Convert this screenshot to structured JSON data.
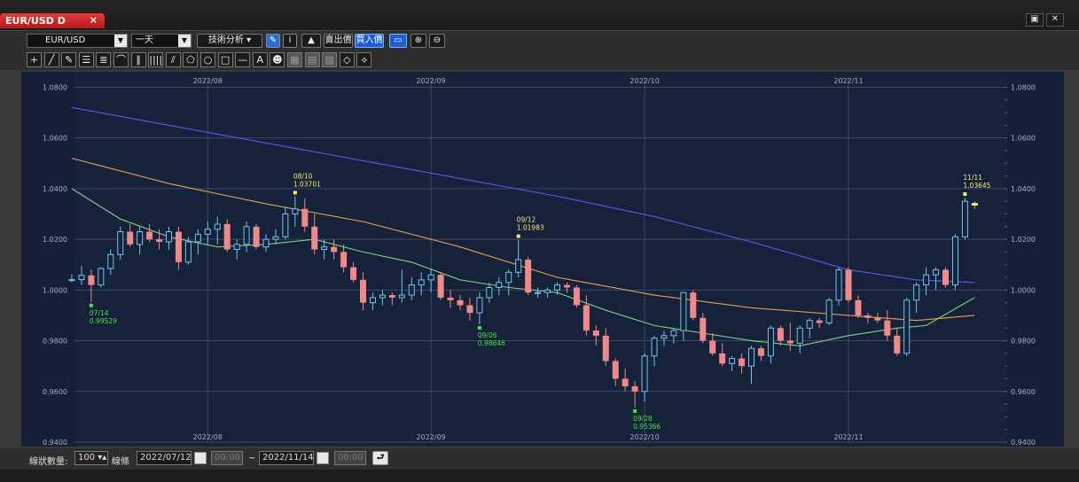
{
  "window": {
    "tab_title": "EUR/USD D",
    "tab_close_glyph": "×",
    "restore_glyph": "▣",
    "close_glyph": "✕"
  },
  "toolbar": {
    "symbol": "EUR/USD",
    "period": "一天",
    "indicator_menu": "技術分析",
    "sell_label": "賣出價",
    "buy_label": "買入價",
    "icons": [
      "flag-icon",
      "pencil-icon",
      "info-icon",
      "area-chart-icon",
      "screenshot-icon",
      "zoom-in-icon",
      "zoom-out-icon"
    ]
  },
  "drawing_tools": [
    "+",
    "╱",
    "✎",
    "☰",
    "≣",
    "⌒",
    "∥",
    "||||",
    "⫽",
    "⬠",
    "○",
    "□",
    "—",
    "A",
    "☻",
    "▦",
    "▤",
    "▧",
    "◇",
    "⟡"
  ],
  "status": {
    "count_label": "線狀數量:",
    "count_value": "100",
    "range_label": "線條",
    "start_date": "2022/07/12",
    "start_time": "00:00",
    "tilde": "~",
    "end_date": "2022/11/14",
    "end_time": "00:00",
    "go_glyph": "⮐"
  },
  "chart_data": {
    "type": "candlestick",
    "ylim": [
      0.94,
      1.084
    ],
    "y_ticks": [
      "1.0800",
      "1.0600",
      "1.0400",
      "1.0200",
      "1.0000",
      "0.9800",
      "0.9600",
      "0.9400"
    ],
    "y_tick_values": [
      1.08,
      1.06,
      1.04,
      1.02,
      1.0,
      0.98,
      0.96,
      0.94
    ],
    "x_ticks": [
      {
        "label": "2022/08",
        "index": 14
      },
      {
        "label": "2022/09",
        "index": 37
      },
      {
        "label": "2022/10",
        "index": 59
      },
      {
        "label": "2022/11",
        "index": 80
      }
    ],
    "colors": {
      "up": "#6ec6f0",
      "down": "#f08a8a",
      "ma_long": "#5b5be8",
      "ma_mid": "#e8a050",
      "ma_short": "#7fd47f",
      "high_label": "#ffe870",
      "low_label": "#3ee83e"
    },
    "candles": [
      [
        1.004,
        1.0062,
        1.003,
        1.0041
      ],
      [
        1.0041,
        1.0095,
        1.002,
        1.0058
      ],
      [
        1.0058,
        1.008,
        0.9953,
        1.002
      ],
      [
        1.002,
        1.009,
        1.001,
        1.0085
      ],
      [
        1.0085,
        1.016,
        1.006,
        1.014
      ],
      [
        1.014,
        1.025,
        1.012,
        1.023
      ],
      [
        1.023,
        1.026,
        1.017,
        1.018
      ],
      [
        1.018,
        1.025,
        1.014,
        1.023
      ],
      [
        1.023,
        1.026,
        1.019,
        1.02
      ],
      [
        1.02,
        1.024,
        1.016,
        1.019
      ],
      [
        1.019,
        1.025,
        1.016,
        1.023
      ],
      [
        1.023,
        1.025,
        1.008,
        1.011
      ],
      [
        1.011,
        1.021,
        1.01,
        1.019
      ],
      [
        1.019,
        1.024,
        1.014,
        1.022
      ],
      [
        1.022,
        1.027,
        1.018,
        1.024
      ],
      [
        1.024,
        1.029,
        1.018,
        1.026
      ],
      [
        1.026,
        1.028,
        1.015,
        1.016
      ],
      [
        1.016,
        1.02,
        1.012,
        1.018
      ],
      [
        1.018,
        1.027,
        1.015,
        1.025
      ],
      [
        1.025,
        1.026,
        1.016,
        1.017
      ],
      [
        1.017,
        1.022,
        1.015,
        1.02
      ],
      [
        1.02,
        1.024,
        1.018,
        1.021
      ],
      [
        1.021,
        1.033,
        1.02,
        1.03
      ],
      [
        1.03,
        1.037,
        1.025,
        1.032
      ],
      [
        1.032,
        1.036,
        1.023,
        1.025
      ],
      [
        1.025,
        1.03,
        1.014,
        1.016
      ],
      [
        1.016,
        1.02,
        1.012,
        1.017
      ],
      [
        1.017,
        1.02,
        1.012,
        1.015
      ],
      [
        1.015,
        1.018,
        1.007,
        1.009
      ],
      [
        1.009,
        1.011,
        1.003,
        1.004
      ],
      [
        1.004,
        1.007,
        0.992,
        0.995
      ],
      [
        0.995,
        0.999,
        0.992,
        0.997
      ],
      [
        0.997,
        1.0,
        0.994,
        0.998
      ],
      [
        0.998,
        0.999,
        0.994,
        0.997
      ],
      [
        0.997,
        1.008,
        0.995,
        0.998
      ],
      [
        0.998,
        1.005,
        0.996,
        1.002
      ],
      [
        1.002,
        1.007,
        0.998,
        1.004
      ],
      [
        1.004,
        1.008,
        0.999,
        1.006
      ],
      [
        1.006,
        1.007,
        0.996,
        0.997
      ],
      [
        0.997,
        1.0,
        0.993,
        0.996
      ],
      [
        0.996,
        0.998,
        0.992,
        0.994
      ],
      [
        0.994,
        0.997,
        0.988,
        0.991
      ],
      [
        0.991,
        0.999,
        0.9865,
        0.997
      ],
      [
        0.997,
        1.003,
        0.995,
        1.001
      ],
      [
        1.001,
        1.005,
        0.998,
        1.003
      ],
      [
        1.003,
        1.008,
        0.998,
        1.007
      ],
      [
        1.007,
        1.0198,
        1.005,
        1.012
      ],
      [
        1.012,
        1.013,
        0.998,
        0.999
      ],
      [
        0.999,
        1.001,
        0.997,
        0.999
      ],
      [
        0.999,
        1.001,
        0.997,
        1.0
      ],
      [
        1.0,
        1.003,
        0.998,
        1.002
      ],
      [
        1.002,
        1.003,
        0.999,
        1.001
      ],
      [
        1.001,
        1.002,
        0.993,
        0.994
      ],
      [
        0.994,
        0.998,
        0.982,
        0.984
      ],
      [
        0.984,
        0.986,
        0.978,
        0.982
      ],
      [
        0.982,
        0.985,
        0.97,
        0.972
      ],
      [
        0.972,
        0.973,
        0.962,
        0.965
      ],
      [
        0.965,
        0.969,
        0.96,
        0.962
      ],
      [
        0.962,
        0.964,
        0.9537,
        0.96
      ],
      [
        0.96,
        0.975,
        0.956,
        0.974
      ],
      [
        0.974,
        0.982,
        0.97,
        0.981
      ],
      [
        0.981,
        0.984,
        0.978,
        0.982
      ],
      [
        0.982,
        0.985,
        0.979,
        0.984
      ],
      [
        0.984,
        0.999,
        0.98,
        0.999
      ],
      [
        0.999,
        1.0,
        0.988,
        0.989
      ],
      [
        0.989,
        0.991,
        0.979,
        0.98
      ],
      [
        0.98,
        0.983,
        0.974,
        0.975
      ],
      [
        0.975,
        0.979,
        0.97,
        0.971
      ],
      [
        0.971,
        0.974,
        0.968,
        0.973
      ],
      [
        0.973,
        0.975,
        0.967,
        0.97
      ],
      [
        0.97,
        0.978,
        0.963,
        0.977
      ],
      [
        0.977,
        0.978,
        0.972,
        0.974
      ],
      [
        0.974,
        0.986,
        0.971,
        0.985
      ],
      [
        0.985,
        0.986,
        0.978,
        0.98
      ],
      [
        0.98,
        0.987,
        0.976,
        0.979
      ],
      [
        0.979,
        0.986,
        0.975,
        0.985
      ],
      [
        0.985,
        0.989,
        0.981,
        0.988
      ],
      [
        0.988,
        0.989,
        0.985,
        0.987
      ],
      [
        0.987,
        0.997,
        0.986,
        0.996
      ],
      [
        0.996,
        1.009,
        0.994,
        1.008
      ],
      [
        1.008,
        1.009,
        0.995,
        0.996
      ],
      [
        0.996,
        0.998,
        0.989,
        0.99
      ],
      [
        0.99,
        0.991,
        0.987,
        0.989
      ],
      [
        0.989,
        0.991,
        0.987,
        0.988
      ],
      [
        0.988,
        0.992,
        0.98,
        0.982
      ],
      [
        0.982,
        0.985,
        0.974,
        0.975
      ],
      [
        0.975,
        0.997,
        0.974,
        0.996
      ],
      [
        0.996,
        1.003,
        0.991,
        1.002
      ],
      [
        1.002,
        1.009,
        0.998,
        1.006
      ],
      [
        1.006,
        1.009,
        1.0,
        1.008
      ],
      [
        1.008,
        1.009,
        1.001,
        1.002
      ],
      [
        1.002,
        1.022,
        1.0,
        1.021
      ],
      [
        1.021,
        1.0364,
        1.02,
        1.035
      ],
      [
        1.034,
        1.035,
        1.032,
        1.034
      ]
    ],
    "ma_long": [
      [
        0,
        1.072
      ],
      [
        10,
        1.065
      ],
      [
        20,
        1.058
      ],
      [
        30,
        1.051
      ],
      [
        40,
        1.044
      ],
      [
        50,
        1.037
      ],
      [
        60,
        1.029
      ],
      [
        70,
        1.019
      ],
      [
        80,
        1.008
      ],
      [
        87,
        1.004
      ],
      [
        93,
        1.003
      ]
    ],
    "ma_mid": [
      [
        0,
        1.052
      ],
      [
        10,
        1.042
      ],
      [
        20,
        1.034
      ],
      [
        30,
        1.027
      ],
      [
        40,
        1.017
      ],
      [
        50,
        1.005
      ],
      [
        60,
        0.998
      ],
      [
        70,
        0.993
      ],
      [
        80,
        0.99
      ],
      [
        87,
        0.988
      ],
      [
        93,
        0.99
      ]
    ],
    "ma_short": [
      [
        0,
        1.04
      ],
      [
        5,
        1.028
      ],
      [
        10,
        1.021
      ],
      [
        15,
        1.017
      ],
      [
        20,
        1.018
      ],
      [
        25,
        1.02
      ],
      [
        30,
        1.015
      ],
      [
        35,
        1.011
      ],
      [
        40,
        1.004
      ],
      [
        45,
        1.001
      ],
      [
        50,
        0.999
      ],
      [
        55,
        0.992
      ],
      [
        60,
        0.986
      ],
      [
        65,
        0.983
      ],
      [
        70,
        0.98
      ],
      [
        75,
        0.978
      ],
      [
        80,
        0.982
      ],
      [
        85,
        0.985
      ],
      [
        88,
        0.986
      ],
      [
        93,
        0.997
      ]
    ],
    "annotations": [
      {
        "index": 2,
        "price": 0.99529,
        "date": "07/14",
        "value": "0.99529",
        "kind": "low"
      },
      {
        "index": 23,
        "price": 1.03701,
        "date": "08/10",
        "value": "1.03701",
        "kind": "high"
      },
      {
        "index": 42,
        "price": 0.98646,
        "date": "09/06",
        "value": "0.98646",
        "kind": "low"
      },
      {
        "index": 46,
        "price": 1.01983,
        "date": "09/12",
        "value": "1.01983",
        "kind": "high"
      },
      {
        "index": 58,
        "price": 0.95366,
        "date": "09/28",
        "value": "0.95366",
        "kind": "low"
      },
      {
        "index": 92,
        "price": 1.03645,
        "date": "11/11",
        "value": "1.03645",
        "kind": "high"
      }
    ]
  }
}
